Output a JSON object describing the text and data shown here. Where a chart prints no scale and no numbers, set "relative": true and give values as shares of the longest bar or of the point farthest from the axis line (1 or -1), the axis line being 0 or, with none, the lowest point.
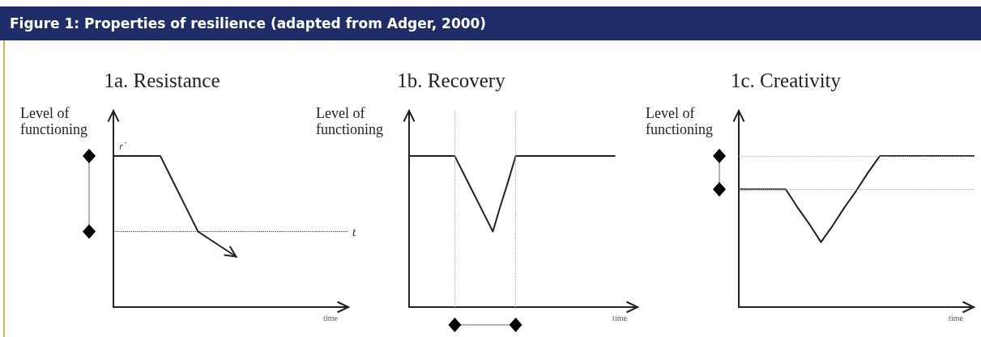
{
  "chart_data": [
    {
      "type": "line",
      "title": "1a. Resistance",
      "xlabel": "time",
      "ylabel": "Level of functioning",
      "relative": true,
      "marker": "none",
      "line_style": "solid",
      "categories": [
        null,
        null,
        null,
        null,
        null,
        null,
        null,
        null,
        null,
        null,
        null,
        null,
        null,
        null,
        null,
        null,
        null,
        null,
        null,
        null,
        null,
        null,
        null,
        null,
        null,
        null
      ],
      "series": [
        {
          "color": "#222222",
          "values": [
            1,
            1,
            1,
            1,
            1,
            1,
            0.875,
            0.75,
            0.625,
            0.5,
            null,
            null,
            null,
            null,
            null,
            null,
            null,
            null,
            null,
            null,
            null,
            null,
            null,
            null,
            null,
            null
          ]
        }
      ],
      "ref_lines": [
        {
          "axis": "y",
          "value": 0.5,
          "label": "t",
          "color": "#333333",
          "line_style": "dotted"
        }
      ],
      "annotations": [
        "Figure 1: Properties of resilience (adapted from Adger, 2000)",
        {
          "text": "r`",
          "y": 1
        }
      ]
    },
    {
      "type": "line",
      "title": "1b. Recovery",
      "xlabel": "time",
      "ylabel": "Level of functioning",
      "relative": true,
      "marker": "none",
      "line_style": "solid",
      "categories": [
        null,
        null,
        null,
        null,
        null,
        null,
        null,
        null,
        null,
        null,
        null,
        null,
        null,
        null,
        null,
        null,
        null,
        null,
        null,
        null,
        null,
        null,
        null,
        null,
        null,
        null,
        null,
        null,
        null,
        null,
        null
      ],
      "series": [
        {
          "color": "#222222",
          "values": [
            1,
            1,
            1,
            1,
            1,
            1,
            1,
            0.9,
            0.8,
            0.7,
            0.6,
            0.5,
            0.67,
            0.83,
            1,
            1,
            1,
            1,
            1,
            1,
            1,
            1,
            1,
            1,
            1,
            1,
            1,
            1,
            null,
            null,
            null
          ]
        }
      ]
    },
    {
      "type": "line",
      "title": "1c. Creativity",
      "xlabel": "time",
      "ylabel": "Level of functioning",
      "relative": true,
      "marker": "none",
      "line_style": "solid",
      "categories": [
        null,
        null,
        null,
        null,
        null,
        null,
        null,
        null,
        null,
        null,
        null,
        null,
        null,
        null,
        null,
        null,
        null,
        null,
        null,
        null,
        null
      ],
      "series": [
        {
          "color": "#222222",
          "values": [
            0.78,
            0.78,
            0.78,
            0.78,
            0.78,
            0.66,
            0.55,
            0.43,
            0.54,
            0.66,
            0.77,
            0.89,
            1,
            1,
            1,
            1,
            1,
            1,
            1,
            1,
            1
          ]
        }
      ],
      "ref_lines": [
        {
          "axis": "y",
          "value": 0.78,
          "label": null,
          "color": "#aaaaaa",
          "line_style": "dotted"
        },
        {
          "axis": "y",
          "value": 1,
          "label": null,
          "color": "#aaaaaa",
          "line_style": "dotted"
        }
      ]
    }
  ]
}
